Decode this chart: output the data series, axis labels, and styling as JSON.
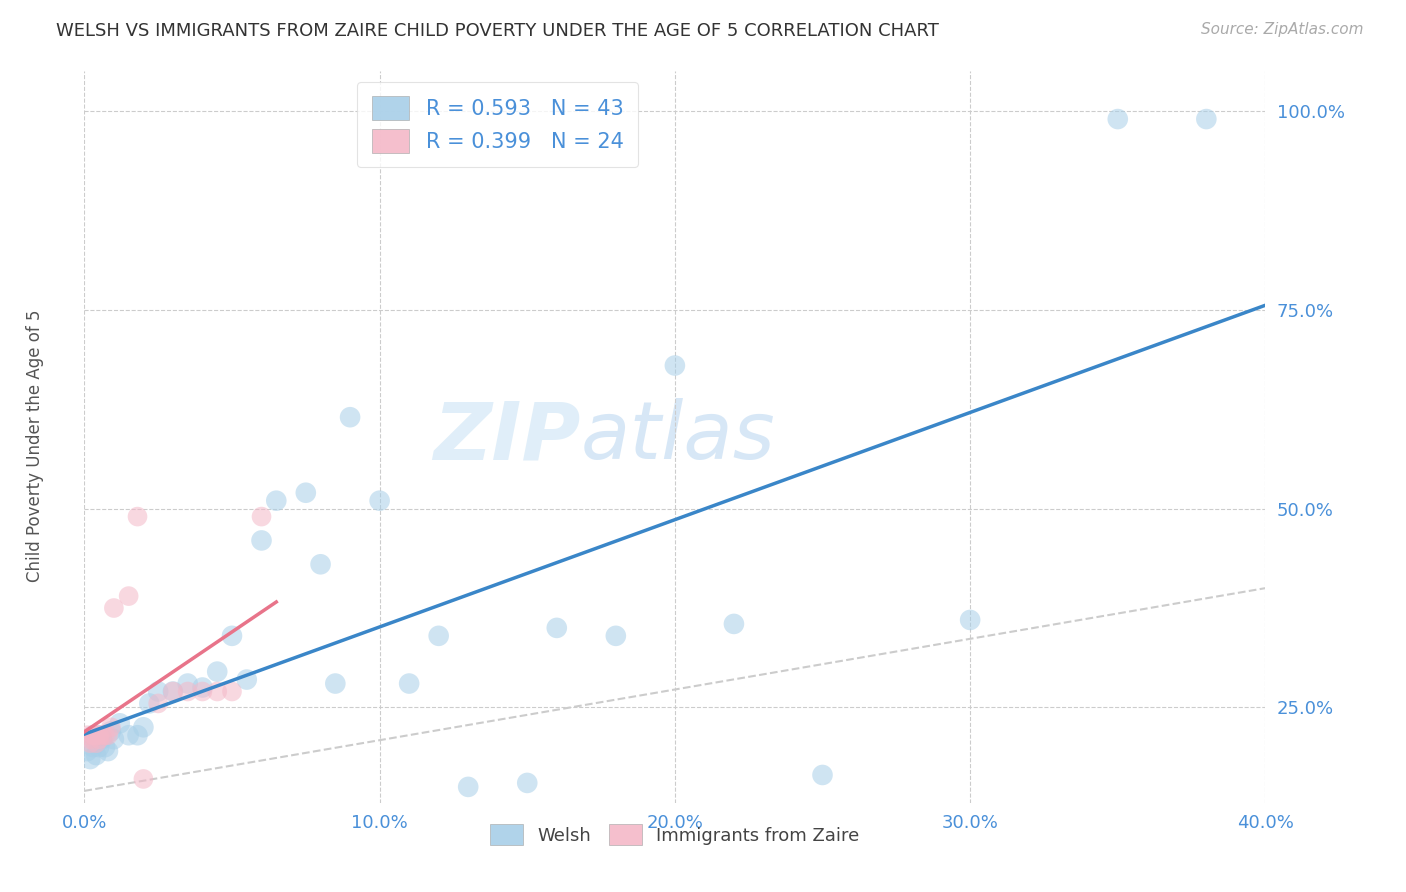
{
  "title": "WELSH VS IMMIGRANTS FROM ZAIRE CHILD POVERTY UNDER THE AGE OF 5 CORRELATION CHART",
  "source": "Source: ZipAtlas.com",
  "ylabel": "Child Poverty Under the Age of 5",
  "xlim": [
    0.0,
    0.4
  ],
  "ylim": [
    0.13,
    1.05
  ],
  "yticks": [
    0.25,
    0.5,
    0.75,
    1.0
  ],
  "ytick_labels": [
    "25.0%",
    "50.0%",
    "75.0%",
    "100.0%"
  ],
  "xticks": [
    0.0,
    0.1,
    0.2,
    0.3,
    0.4
  ],
  "xtick_labels": [
    "0.0%",
    "10.0%",
    "20.0%",
    "30.0%",
    "40.0%"
  ],
  "watermark_zip": "ZIP",
  "watermark_atlas": "atlas",
  "legend_blue_R": "R = 0.593",
  "legend_blue_N": "N = 43",
  "legend_pink_R": "R = 0.399",
  "legend_pink_N": "N = 24",
  "blue_color": "#a8cfe8",
  "pink_color": "#f4b8c8",
  "blue_line_color": "#3a86c8",
  "pink_line_color": "#e8748a",
  "diagonal_color": "#cccccc",
  "welsh_x": [
    0.001,
    0.002,
    0.003,
    0.003,
    0.004,
    0.005,
    0.005,
    0.006,
    0.007,
    0.008,
    0.009,
    0.01,
    0.012,
    0.015,
    0.018,
    0.02,
    0.022,
    0.025,
    0.03,
    0.035,
    0.04,
    0.045,
    0.05,
    0.055,
    0.06,
    0.065,
    0.075,
    0.08,
    0.085,
    0.09,
    0.1,
    0.11,
    0.12,
    0.13,
    0.15,
    0.16,
    0.18,
    0.2,
    0.22,
    0.25,
    0.3,
    0.35,
    0.38
  ],
  "welsh_y": [
    0.195,
    0.185,
    0.2,
    0.215,
    0.19,
    0.2,
    0.215,
    0.21,
    0.2,
    0.195,
    0.22,
    0.21,
    0.23,
    0.215,
    0.215,
    0.225,
    0.255,
    0.27,
    0.27,
    0.28,
    0.275,
    0.295,
    0.34,
    0.285,
    0.46,
    0.51,
    0.52,
    0.43,
    0.28,
    0.615,
    0.51,
    0.28,
    0.34,
    0.15,
    0.155,
    0.35,
    0.34,
    0.68,
    0.355,
    0.165,
    0.36,
    0.99,
    0.99
  ],
  "zaire_x": [
    0.001,
    0.002,
    0.002,
    0.003,
    0.003,
    0.004,
    0.004,
    0.005,
    0.005,
    0.006,
    0.007,
    0.008,
    0.009,
    0.01,
    0.015,
    0.018,
    0.02,
    0.025,
    0.03,
    0.035,
    0.04,
    0.045,
    0.05,
    0.06
  ],
  "zaire_y": [
    0.215,
    0.205,
    0.21,
    0.215,
    0.215,
    0.215,
    0.205,
    0.21,
    0.215,
    0.215,
    0.215,
    0.215,
    0.225,
    0.375,
    0.39,
    0.49,
    0.16,
    0.255,
    0.27,
    0.27,
    0.27,
    0.27,
    0.27,
    0.49
  ]
}
